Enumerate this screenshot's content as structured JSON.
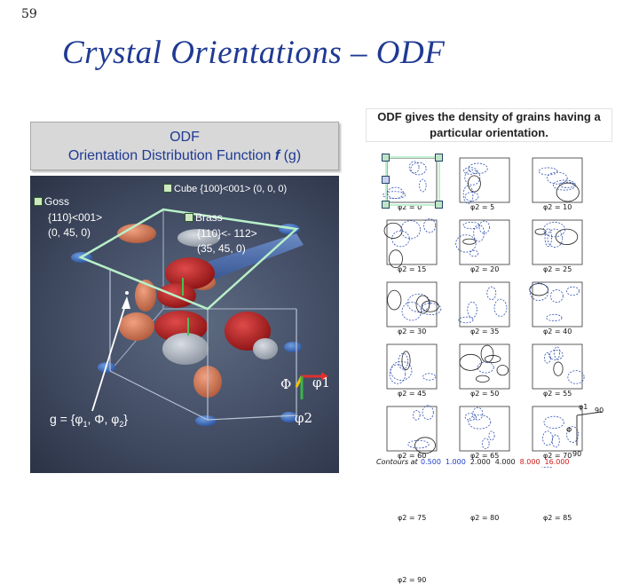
{
  "slide": {
    "number": "59",
    "title": "Crystal Orientations – ODF"
  },
  "odf_box": {
    "line1": "ODF",
    "line2_prefix": "Orientation Distribution Function ",
    "line2_f": "f",
    "line2_suffix": " (g)"
  },
  "caption": "ODF gives the density of grains having a particular orientation.",
  "viz": {
    "goss": {
      "name": "Goss",
      "index": "{110}<001>",
      "angles": "(0, 45, 0)"
    },
    "cube": {
      "label": "Cube {100}<001> (0, 0, 0)"
    },
    "brass": {
      "name": "Brass",
      "index": "{110}<- 112>",
      "angles": "(35, 45, 0)"
    },
    "g_equation": {
      "prefix": "g = {φ",
      "s1": "1",
      "mid": ", Φ, φ",
      "s2": "2",
      "suffix": "}"
    },
    "axis_phi": "Φ",
    "axis_phi1": "φ1",
    "axis_phi2": "φ2"
  },
  "sections": {
    "panels": [
      "φ2 = 0",
      "φ2 = 5",
      "φ2 = 10",
      "φ2 = 15",
      "φ2 = 20",
      "φ2 = 25",
      "φ2 = 30",
      "φ2 = 35",
      "φ2 = 40",
      "φ2 = 45",
      "φ2 = 50",
      "φ2 = 55",
      "φ2 = 60",
      "φ2 = 65",
      "φ2 = 70",
      "φ2 = 75",
      "φ2 = 80",
      "φ2 = 85",
      "φ2 = 90"
    ],
    "axis_phi1": "φ1",
    "axis_90_a": "90",
    "axis_90_b": "90",
    "axis_Phi": "Φ",
    "contours_label": "Contours at",
    "contour_values": [
      "0.500",
      "1.000",
      "2.000",
      "4.000",
      "8.000",
      "16.000"
    ],
    "contour_colors": [
      "#1e3fc8",
      "#1e3fc8",
      "#222222",
      "#222222",
      "#cc1a1a",
      "#cc1a1a"
    ]
  }
}
